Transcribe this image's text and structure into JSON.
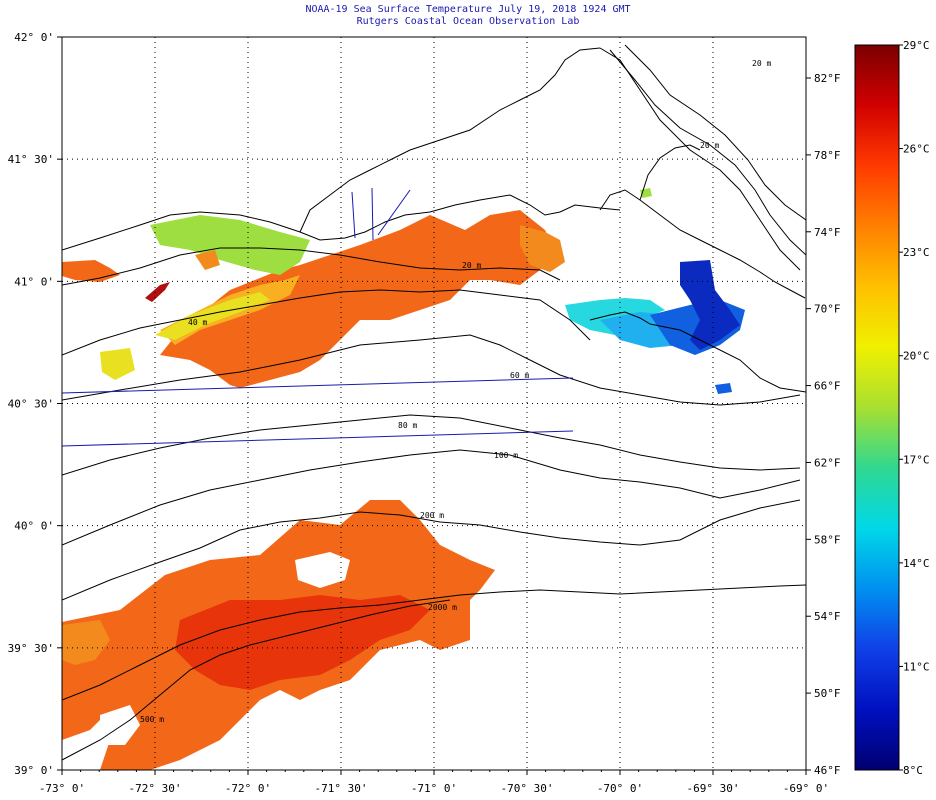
{
  "header": {
    "title": "NOAA-19 Sea Surface Temperature July 19, 2018 1924 GMT",
    "subtitle": "Rutgers Coastal Ocean Observation Lab"
  },
  "map": {
    "lat_labels": [
      "42° 0'",
      "41° 30'",
      "41° 0'",
      "40° 30'",
      "40° 0'",
      "39° 30'",
      "39° 0'"
    ],
    "lon_labels": [
      "-73° 0'",
      "-72° 30'",
      "-72° 0'",
      "-71° 30'",
      "-71° 0'",
      "-70° 30'",
      "-70° 0'",
      "-69° 30'",
      "-69° 0'"
    ],
    "fahrenheit_labels": [
      "82°F",
      "78°F",
      "74°F",
      "70°F",
      "66°F",
      "62°F",
      "58°F",
      "54°F",
      "50°F",
      "46°F"
    ],
    "contour_labels": [
      "20 m",
      "40 m",
      "60 m",
      "80 m",
      "100 m",
      "200 m",
      "2000 m",
      "500 m",
      "20 m",
      "20 m"
    ]
  },
  "colorbar": {
    "celsius_labels": [
      "29°C",
      "26°C",
      "23°C",
      "20°C",
      "17°C",
      "14°C",
      "11°C",
      "8°C"
    ],
    "gradient_colors": [
      "#7a0000",
      "#d10000",
      "#ff3a00",
      "#ff8000",
      "#ffc000",
      "#f0f000",
      "#a8e030",
      "#30d890",
      "#00d8e8",
      "#0090f0",
      "#1040e8",
      "#0010c0",
      "#000070"
    ]
  },
  "legend_colors": {
    "frame": "#000000",
    "grid": "#000000",
    "cruise_track": "#1a1ab0",
    "title_text": "#1a1ab0"
  },
  "sst_palette": {
    "warm_red": "#e8340a",
    "orange": "#f36818",
    "orange_light": "#f28a1e",
    "yellow_orange": "#f8b020",
    "yellow": "#e8e020",
    "green": "#9ede40",
    "cyan": "#28d8e0",
    "sky": "#20b0f0",
    "blue": "#1060e0",
    "dark_blue": "#0a2ac0",
    "dark_red": "#b01010"
  }
}
